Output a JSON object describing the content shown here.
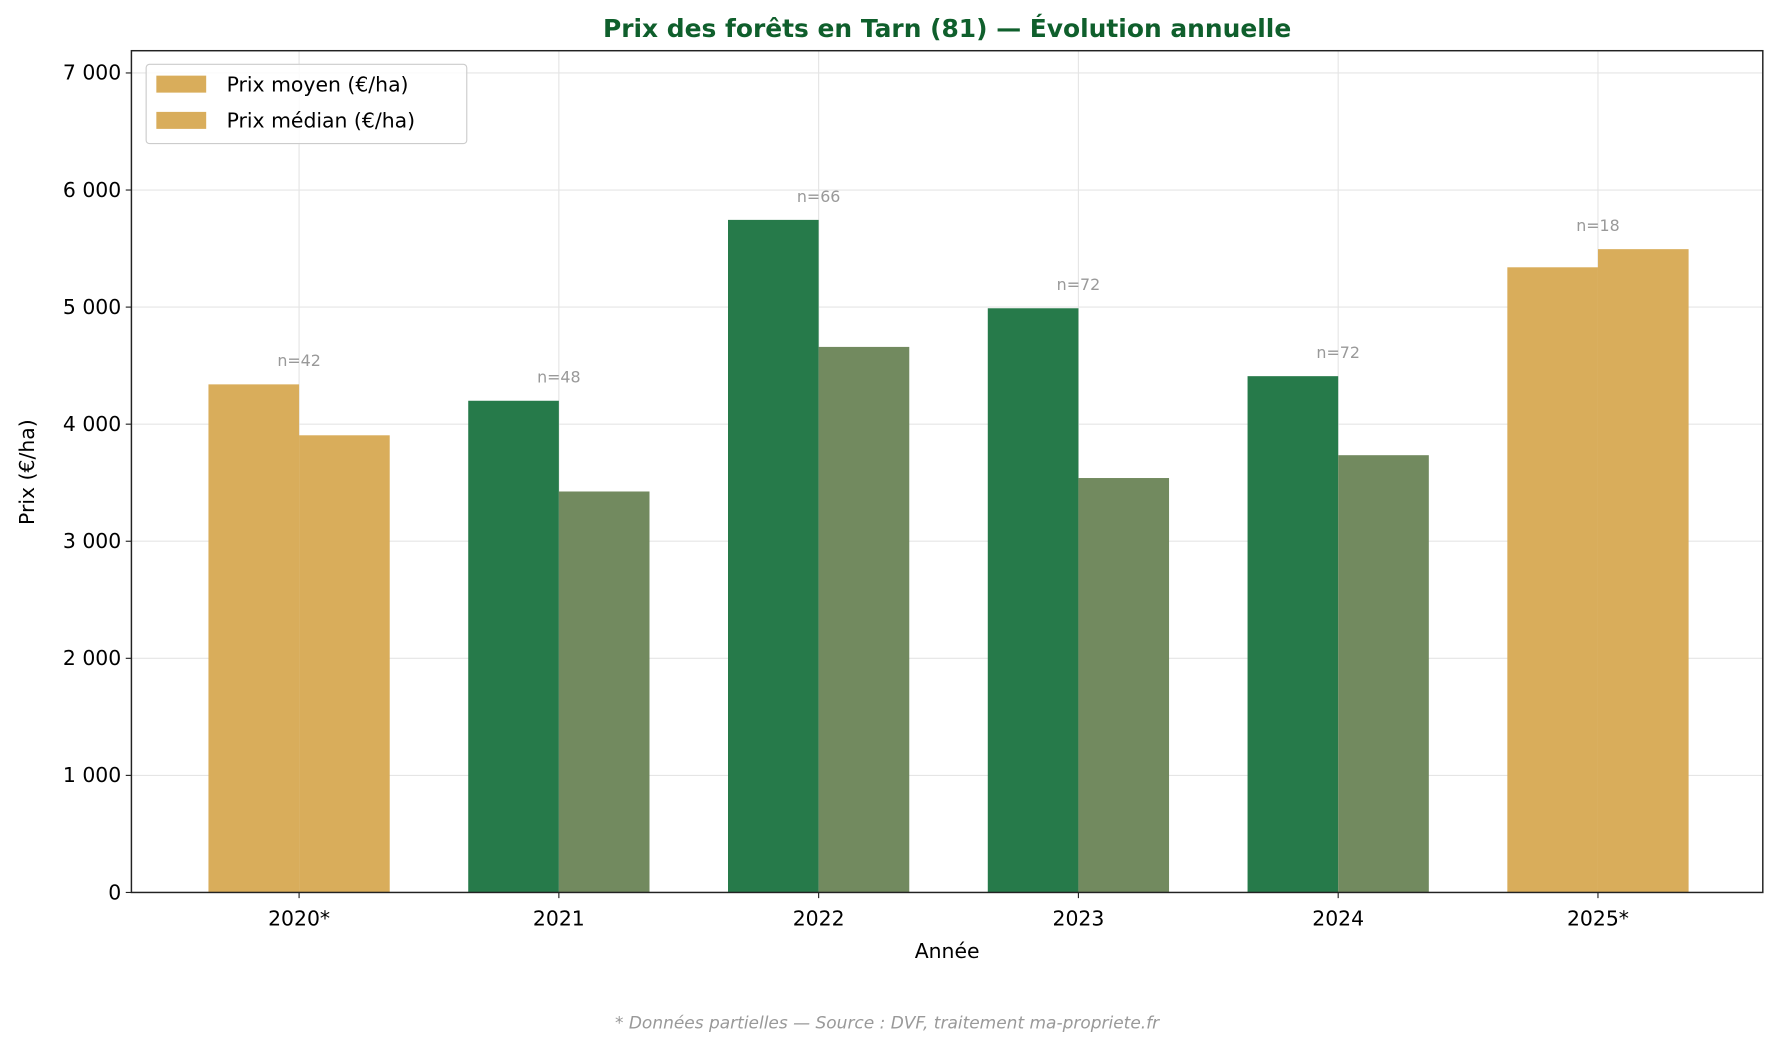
{
  "chart_data": {
    "type": "bar",
    "title": "Prix des forêts en Tarn (81) — Évolution annuelle",
    "xlabel": "Année",
    "ylabel": "Prix (€/ha)",
    "ylim": [
      0,
      7190
    ],
    "yticks": [
      0,
      1000,
      2000,
      3000,
      4000,
      5000,
      6000,
      7000
    ],
    "ytick_labels": [
      "0",
      "1 000",
      "2 000",
      "3 000",
      "4 000",
      "5 000",
      "6 000",
      "7 000"
    ],
    "grid": true,
    "legend_placement": "top-left",
    "categories": [
      "2020*",
      "2021",
      "2022",
      "2023",
      "2024",
      "2025*"
    ],
    "partial": [
      true,
      false,
      false,
      false,
      false,
      true
    ],
    "series": [
      {
        "name": "Prix moyen (€/ha)",
        "values": [
          4340,
          4200,
          5745,
          4990,
          4410,
          5340
        ]
      },
      {
        "name": "Prix médian (€/ha)",
        "values": [
          3905,
          3425,
          4660,
          3540,
          3735,
          5495
        ]
      }
    ],
    "annotations": [
      "n=42",
      "n=48",
      "n=66",
      "n=72",
      "n=72",
      "n=18"
    ],
    "footnote": "* Données partielles — Source : DVF, traitement ma-propriete.fr",
    "colors": {
      "mean": "#267A4A",
      "median": "#728A5F",
      "partial": "#D9AD5B",
      "title": "#0F5F2C",
      "annotation": "#999999"
    }
  }
}
